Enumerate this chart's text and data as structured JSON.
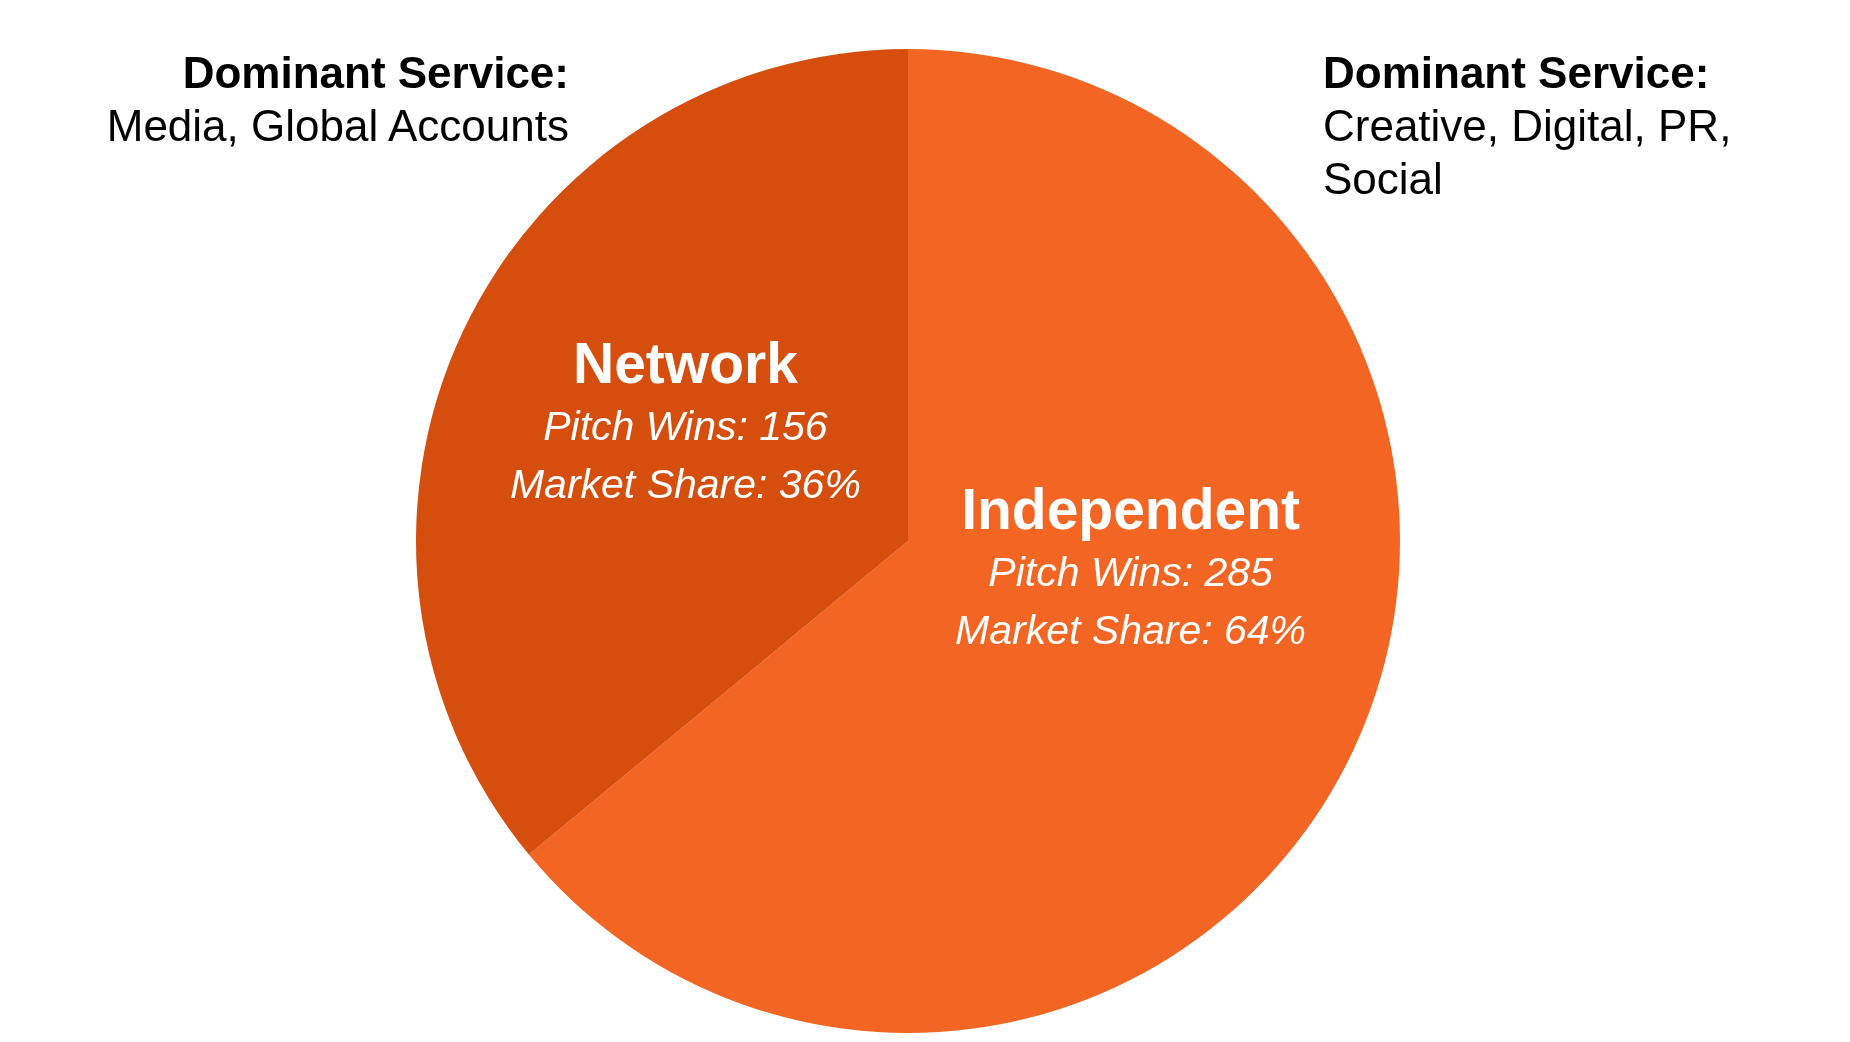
{
  "chart_data": {
    "type": "pie",
    "categories": [
      "Independent",
      "Network"
    ],
    "values": [
      64,
      36
    ],
    "colors": [
      "#f26522",
      "#d54e0e"
    ],
    "value_labels": [
      "Pitch Wins: 285\nMarket Share: 64%",
      "Pitch Wins: 156\nMarket Share: 36%"
    ],
    "annotations": [
      "Dominant Service:\nMedia, Global Accounts",
      "Dominant Service:\nCreative, Digital, PR, Social"
    ]
  }
}
